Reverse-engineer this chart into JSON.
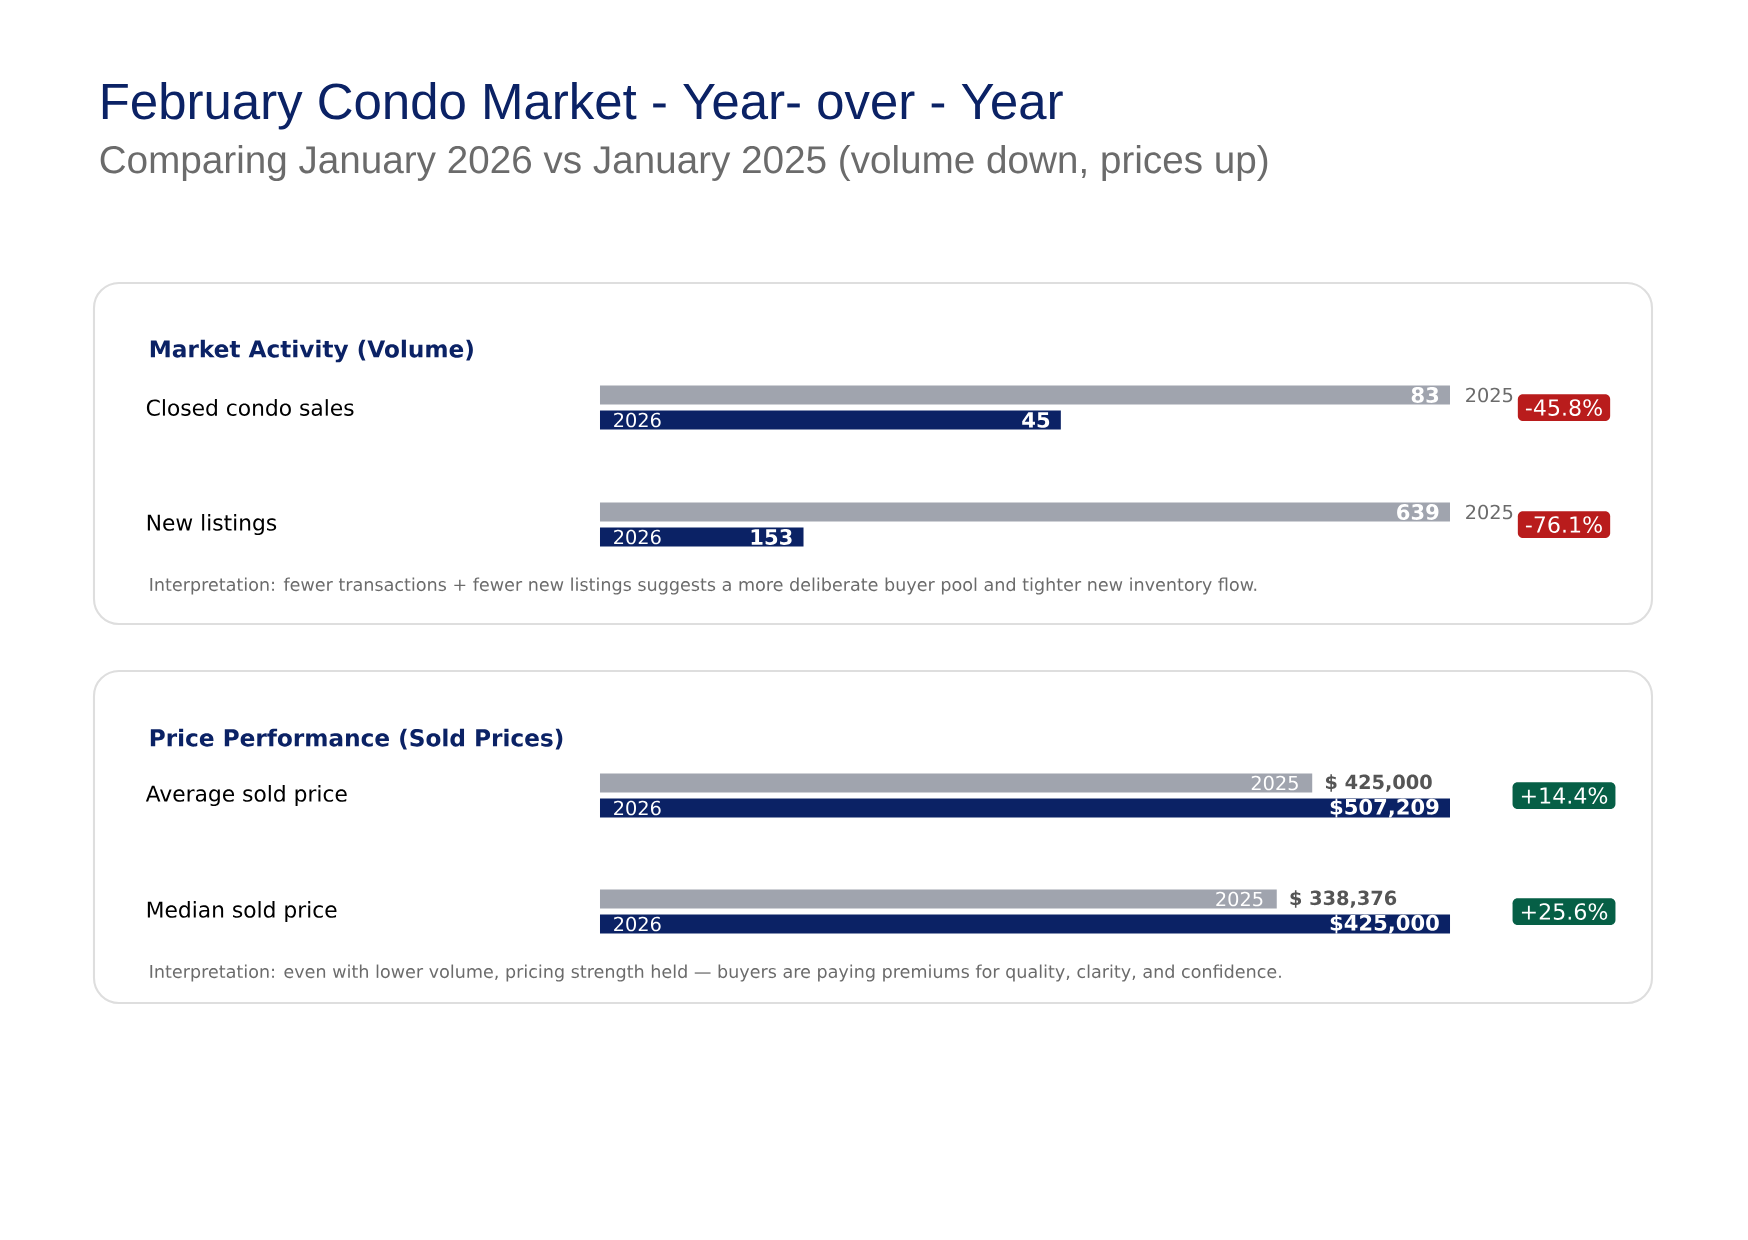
{
  "chart_data": [
    {
      "type": "other",
      "title": "February Condo Market - Year-  over - Year",
      "subtitle": "Comparing January 2026 vs January 2025 (volume down, prices up)"
    },
    {
      "type": "bar",
      "orientation": "horizontal",
      "title": "Market Activity (Volume)",
      "categories": [
        "Closed condo sales"
      ],
      "series": [
        {
          "name": "2025",
          "color": "#a0a4ae",
          "values": [
            83
          ]
        },
        {
          "name": "2026",
          "color": "#0b2265",
          "values": [
            45
          ]
        }
      ],
      "data_labels": true,
      "annotations": [
        "-45.8%"
      ]
    },
    {
      "type": "bar",
      "orientation": "horizontal",
      "categories": [
        "New listings"
      ],
      "series": [
        {
          "name": "2025",
          "color": "#a0a4ae",
          "values": [
            639
          ]
        },
        {
          "name": "2026",
          "color": "#0b2265",
          "values": [
            153
          ]
        }
      ],
      "data_labels": true,
      "annotations": [
        "-76.1%",
        "Interpretation: fewer transactions + fewer new listings suggests a more deliberate buyer pool and tighter new inventory flow."
      ]
    },
    {
      "type": "bar",
      "orientation": "horizontal",
      "title": "Price Performance (Sold Prices)",
      "categories": [
        "Average sold price"
      ],
      "series": [
        {
          "name": "2025",
          "color": "#a0a4ae",
          "values": [
            425000
          ],
          "value_labels": [
            "$ 425,000"
          ]
        },
        {
          "name": "2026",
          "color": "#0b2265",
          "values": [
            507209
          ],
          "value_labels": [
            "$507,209"
          ]
        }
      ],
      "annotations": [
        "+14.4%"
      ]
    },
    {
      "type": "bar",
      "orientation": "horizontal",
      "categories": [
        "Median sold price"
      ],
      "series": [
        {
          "name": "2025",
          "color": "#a0a4ae",
          "values": [
            338376
          ],
          "value_labels": [
            "$ 338,376"
          ]
        },
        {
          "name": "2026",
          "color": "#0b2265",
          "values": [
            425000
          ],
          "value_labels": [
            "$425,000"
          ]
        }
      ],
      "annotations": [
        "+25.6%",
        "Interpretation: even with lower volume, pricing strength held — buyers are paying premiums for quality, clarity, and confidence."
      ]
    }
  ]
}
